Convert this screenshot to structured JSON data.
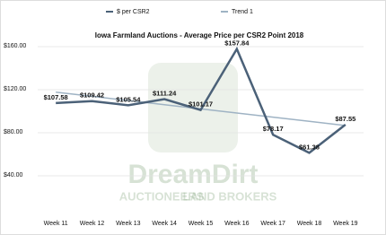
{
  "chart_data": {
    "type": "line",
    "title": "Iowa Farmland Auctions - Average Price per CSR2 Point 2018",
    "watermark": [
      "DreamDirt",
      "AUCTIONEERS",
      "LAND BROKERS"
    ],
    "categories": [
      "Week 11",
      "Week 12",
      "Week 13",
      "Week 14",
      "Week 15",
      "Week 16",
      "Week 17",
      "Week 18",
      "Week 19"
    ],
    "series": [
      {
        "name": "$ per CSR2",
        "color": "#4b6178",
        "values": [
          107.58,
          109.42,
          105.54,
          111.24,
          101.17,
          157.84,
          78.17,
          61.38,
          87.55
        ],
        "value_labels": [
          "$107.58",
          "$109.42",
          "$105.54",
          "$111.24",
          "$101.17",
          "$157.84",
          "$78.17",
          "$61.38",
          "$87.55"
        ]
      },
      {
        "name": "Trend 1",
        "color": "#9fb3c4",
        "values": [
          117.7,
          113.83,
          109.96,
          106.08,
          102.21,
          98.34,
          94.47,
          90.59,
          86.72
        ]
      }
    ],
    "ylim": [
      0,
      170
    ],
    "yticks": [
      {
        "value": 40,
        "label": "$40.00"
      },
      {
        "value": 80,
        "label": "$80.00"
      },
      {
        "value": 120,
        "label": "$120.00"
      },
      {
        "value": 160,
        "label": "$160.00"
      }
    ],
    "grid": true,
    "legend": "top"
  }
}
